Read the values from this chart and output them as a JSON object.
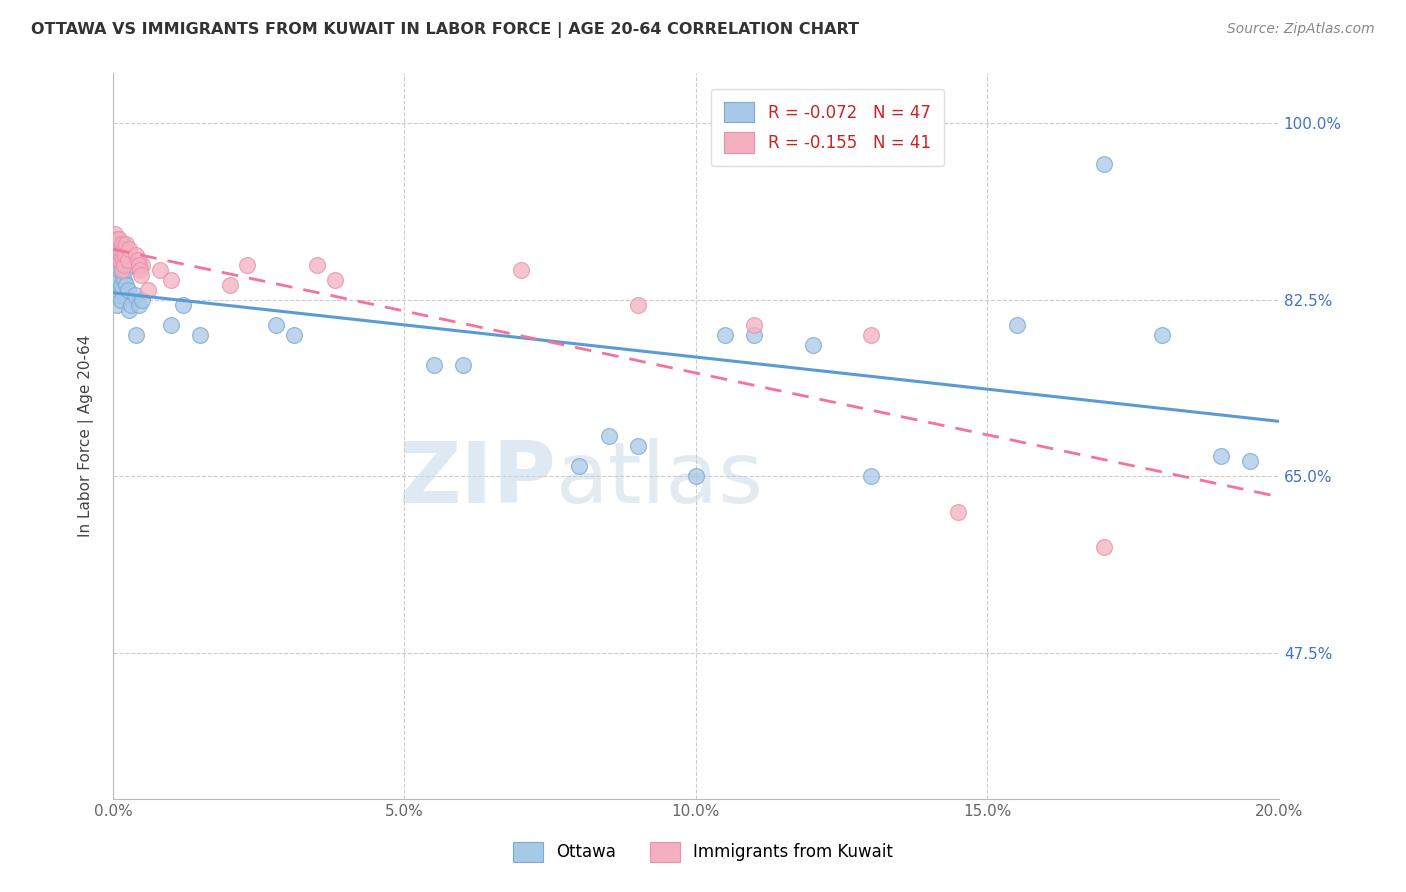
{
  "title": "OTTAWA VS IMMIGRANTS FROM KUWAIT IN LABOR FORCE | AGE 20-64 CORRELATION CHART",
  "source": "Source: ZipAtlas.com",
  "ylabel": "In Labor Force | Age 20-64",
  "xlim": [
    0.0,
    0.2
  ],
  "ylim": [
    0.33,
    1.05
  ],
  "xtick_labels": [
    "0.0%",
    "5.0%",
    "10.0%",
    "15.0%",
    "20.0%"
  ],
  "xtick_vals": [
    0.0,
    0.05,
    0.1,
    0.15,
    0.2
  ],
  "ytick_labels_right": [
    "100.0%",
    "82.5%",
    "65.0%",
    "47.5%"
  ],
  "ytick_vals": [
    1.0,
    0.825,
    0.65,
    0.475
  ],
  "grid_color": "#cccccc",
  "watermark_zip": "ZIP",
  "watermark_atlas": "atlas",
  "legend_R_blue": "-0.072",
  "legend_N_blue": "47",
  "legend_R_pink": "-0.155",
  "legend_N_pink": "41",
  "blue_color": "#a8c8e8",
  "pink_color": "#f4b0c0",
  "blue_edge_color": "#7aaad0",
  "pink_edge_color": "#e890a8",
  "blue_line_color": "#5b9bd5",
  "pink_line_color": "#f4739a",
  "ottawa_x": [
    0.0003,
    0.0005,
    0.0006,
    0.0007,
    0.0008,
    0.0009,
    0.001,
    0.001,
    0.0011,
    0.0012,
    0.0013,
    0.0014,
    0.0015,
    0.0016,
    0.0017,
    0.0018,
    0.0019,
    0.002,
    0.0022,
    0.0025,
    0.0028,
    0.003,
    0.0035,
    0.0038,
    0.004,
    0.0045,
    0.005,
    0.01,
    0.012,
    0.015,
    0.028,
    0.031,
    0.055,
    0.06,
    0.09,
    0.1,
    0.12,
    0.13,
    0.155,
    0.17,
    0.18,
    0.19,
    0.195,
    0.08,
    0.085,
    0.11,
    0.105
  ],
  "ottawa_y": [
    0.855,
    0.84,
    0.82,
    0.86,
    0.835,
    0.87,
    0.845,
    0.875,
    0.83,
    0.855,
    0.84,
    0.825,
    0.855,
    0.87,
    0.88,
    0.865,
    0.845,
    0.855,
    0.84,
    0.835,
    0.815,
    0.82,
    0.86,
    0.83,
    0.79,
    0.82,
    0.825,
    0.8,
    0.82,
    0.79,
    0.8,
    0.79,
    0.76,
    0.76,
    0.68,
    0.65,
    0.78,
    0.65,
    0.8,
    0.96,
    0.79,
    0.67,
    0.665,
    0.66,
    0.69,
    0.79,
    0.79
  ],
  "kuwait_x": [
    0.0002,
    0.0003,
    0.0004,
    0.0005,
    0.0006,
    0.0007,
    0.0008,
    0.0009,
    0.001,
    0.0011,
    0.0012,
    0.0013,
    0.0014,
    0.0015,
    0.0016,
    0.0017,
    0.0018,
    0.0019,
    0.002,
    0.0022,
    0.0025,
    0.0028,
    0.005,
    0.006,
    0.008,
    0.01,
    0.02,
    0.023,
    0.035,
    0.038,
    0.07,
    0.09,
    0.11,
    0.13,
    0.145,
    0.17,
    0.004,
    0.0042,
    0.0044,
    0.0046,
    0.0048
  ],
  "kuwait_y": [
    0.875,
    0.88,
    0.89,
    0.87,
    0.885,
    0.875,
    0.865,
    0.88,
    0.87,
    0.885,
    0.865,
    0.87,
    0.875,
    0.88,
    0.855,
    0.865,
    0.86,
    0.875,
    0.87,
    0.88,
    0.865,
    0.875,
    0.86,
    0.835,
    0.855,
    0.845,
    0.84,
    0.86,
    0.86,
    0.845,
    0.855,
    0.82,
    0.8,
    0.79,
    0.615,
    0.58,
    0.87,
    0.865,
    0.86,
    0.855,
    0.85
  ]
}
